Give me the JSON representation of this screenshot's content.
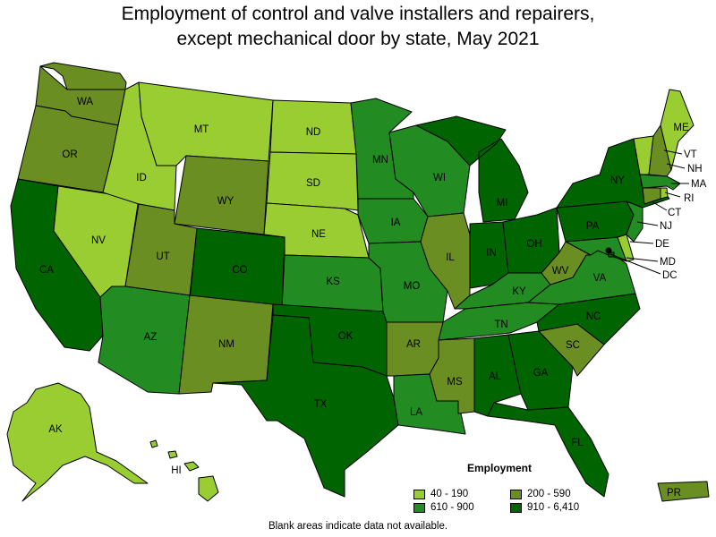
{
  "title_line1": "Employment of control and valve installers and repairers,",
  "title_line2": "except mechanical door by state, May 2021",
  "legend": {
    "title": "Employment",
    "items": [
      {
        "label": "40 - 190",
        "color": "#9acd32"
      },
      {
        "label": "200 - 590",
        "color": "#6b8e23"
      },
      {
        "label": "610 - 900",
        "color": "#228b22"
      },
      {
        "label": "910 - 6,410",
        "color": "#006400"
      }
    ]
  },
  "note": "Blank areas indicate data not available.",
  "colors": {
    "c1": "#9acd32",
    "c2": "#6b8e23",
    "c3": "#228b22",
    "c4": "#006400"
  },
  "states": [
    {
      "abbr": "WA",
      "class": "c2"
    },
    {
      "abbr": "OR",
      "class": "c2"
    },
    {
      "abbr": "CA",
      "class": "c4"
    },
    {
      "abbr": "ID",
      "class": "c1"
    },
    {
      "abbr": "NV",
      "class": "c1"
    },
    {
      "abbr": "MT",
      "class": "c1"
    },
    {
      "abbr": "WY",
      "class": "c2"
    },
    {
      "abbr": "UT",
      "class": "c2"
    },
    {
      "abbr": "AZ",
      "class": "c3"
    },
    {
      "abbr": "CO",
      "class": "c4"
    },
    {
      "abbr": "NM",
      "class": "c2"
    },
    {
      "abbr": "ND",
      "class": "c1"
    },
    {
      "abbr": "SD",
      "class": "c1"
    },
    {
      "abbr": "NE",
      "class": "c1"
    },
    {
      "abbr": "KS",
      "class": "c3"
    },
    {
      "abbr": "OK",
      "class": "c4"
    },
    {
      "abbr": "TX",
      "class": "c4"
    },
    {
      "abbr": "MN",
      "class": "c3"
    },
    {
      "abbr": "IA",
      "class": "c3"
    },
    {
      "abbr": "MO",
      "class": "c3"
    },
    {
      "abbr": "AR",
      "class": "c2"
    },
    {
      "abbr": "LA",
      "class": "c3"
    },
    {
      "abbr": "WI",
      "class": "c3"
    },
    {
      "abbr": "IL",
      "class": "c2"
    },
    {
      "abbr": "MI",
      "class": "c4"
    },
    {
      "abbr": "IN",
      "class": "c4"
    },
    {
      "abbr": "OH",
      "class": "c4"
    },
    {
      "abbr": "KY",
      "class": "c3"
    },
    {
      "abbr": "TN",
      "class": "c3"
    },
    {
      "abbr": "MS",
      "class": "c2"
    },
    {
      "abbr": "AL",
      "class": "c4"
    },
    {
      "abbr": "GA",
      "class": "c4"
    },
    {
      "abbr": "FL",
      "class": "c4"
    },
    {
      "abbr": "SC",
      "class": "c2"
    },
    {
      "abbr": "NC",
      "class": "c4"
    },
    {
      "abbr": "VA",
      "class": "c3"
    },
    {
      "abbr": "WV",
      "class": "c2"
    },
    {
      "abbr": "PA",
      "class": "c4"
    },
    {
      "abbr": "NY",
      "class": "c4"
    },
    {
      "abbr": "VT",
      "class": "c1"
    },
    {
      "abbr": "NH",
      "class": "c2"
    },
    {
      "abbr": "ME",
      "class": "c1"
    },
    {
      "abbr": "MA",
      "class": "c3"
    },
    {
      "abbr": "RI",
      "class": "c1"
    },
    {
      "abbr": "CT",
      "class": "c2"
    },
    {
      "abbr": "NJ",
      "class": "c3"
    },
    {
      "abbr": "DE",
      "class": "c1"
    },
    {
      "abbr": "MD",
      "class": "c3"
    },
    {
      "abbr": "DC",
      "class": "c4"
    },
    {
      "abbr": "AK",
      "class": "c1"
    },
    {
      "abbr": "HI",
      "class": "c1"
    },
    {
      "abbr": "PR",
      "class": "c2"
    }
  ]
}
